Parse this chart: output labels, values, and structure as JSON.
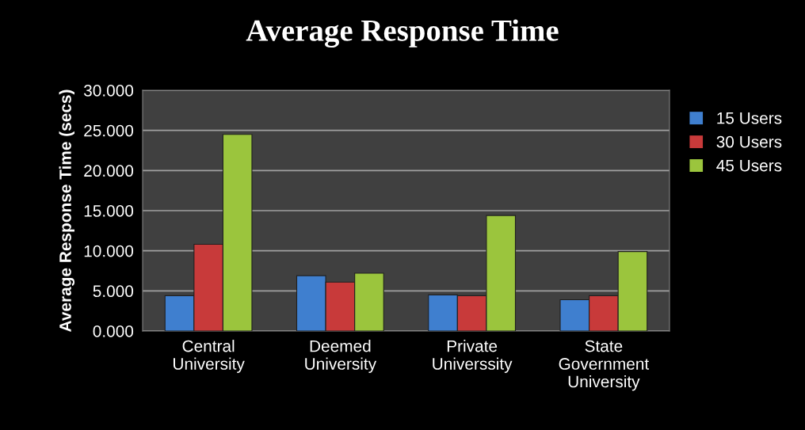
{
  "chart_data": {
    "type": "bar",
    "title": "Average Response Time",
    "ylabel": "Average Response Time (secs)",
    "categories": [
      "Central\nUniversity",
      "Deemed\nUniversity",
      "Private\nUniverssity",
      "State\nGovernment\nUniversity"
    ],
    "series": [
      {
        "name": "15 Users",
        "color": "#3f7fcf",
        "values": [
          4.4,
          6.9,
          4.5,
          3.9
        ]
      },
      {
        "name": "30 Users",
        "color": "#c83a3a",
        "values": [
          10.8,
          6.1,
          4.4,
          4.4
        ]
      },
      {
        "name": "45 Users",
        "color": "#9bc53d",
        "values": [
          24.5,
          7.2,
          14.4,
          9.9
        ]
      }
    ],
    "ylim": [
      0,
      30
    ],
    "yticks": [
      {
        "value": 0,
        "label": "0.000"
      },
      {
        "value": 5,
        "label": "5.000"
      },
      {
        "value": 10,
        "label": "10.000"
      },
      {
        "value": 15,
        "label": "15.000"
      },
      {
        "value": 20,
        "label": "20.000"
      },
      {
        "value": 25,
        "label": "25.000"
      },
      {
        "value": 30,
        "label": "30.000"
      }
    ],
    "grid": "y",
    "legend": "right"
  }
}
